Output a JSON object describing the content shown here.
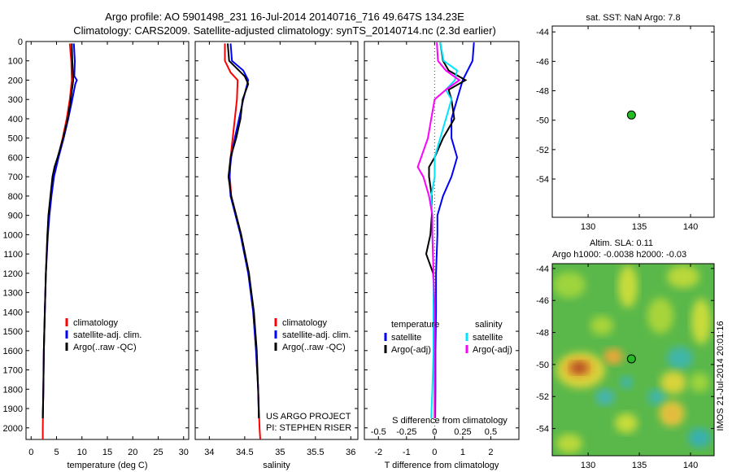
{
  "header": {
    "title_line1": "Argo profile: AO 5901498_231 16-Jul-2014 20140716_716 49.647S 134.23E",
    "title_line2": "Climatology: CARS2009. Satellite-adjusted climatology: synTS_20140714.nc (2.3d earlier)"
  },
  "colors": {
    "climatology": "#ff0000",
    "satellite": "#0000ff",
    "argo": "#000000",
    "sal_satellite": "#00e5ff",
    "sal_argo": "#ff00ff",
    "marker_fill": "#22bb22"
  },
  "chart_data": [
    {
      "id": "temperature",
      "type": "line",
      "xlabel": "temperature (deg C)",
      "xlim": [
        -1,
        31
      ],
      "xticks": [
        0,
        5,
        10,
        15,
        20,
        25,
        30
      ],
      "xtick_labels": [
        "0",
        "5",
        "10",
        "15",
        "20",
        "25",
        "30"
      ],
      "ylim": [
        2060,
        0
      ],
      "yticks": [
        0,
        100,
        200,
        300,
        400,
        500,
        600,
        700,
        800,
        900,
        1000,
        1100,
        1200,
        1300,
        1400,
        1500,
        1600,
        1700,
        1800,
        1900,
        2000
      ],
      "legend": [
        "climatology",
        "satellite-adj. clim.",
        "Argo(..raw -QC)"
      ],
      "series": [
        {
          "name": "climatology",
          "color": "#ff0000",
          "depth": [
            10,
            100,
            200,
            300,
            400,
            500,
            600,
            700,
            800,
            900,
            1000,
            1200,
            1400,
            1600,
            1800,
            2000,
            2060
          ],
          "values": [
            7.6,
            7.9,
            8.0,
            7.6,
            7.0,
            6.2,
            5.3,
            4.4,
            3.9,
            3.5,
            3.2,
            2.9,
            2.7,
            2.5,
            2.4,
            2.3,
            2.3
          ]
        },
        {
          "name": "satellite-adj. clim.",
          "color": "#0000ff",
          "depth": [
            10,
            100,
            180,
            200,
            220,
            300,
            400,
            500,
            600,
            700,
            800,
            900,
            1000,
            1200,
            1400,
            1600,
            1800,
            1950
          ],
          "values": [
            8.4,
            8.6,
            8.5,
            9.0,
            8.7,
            8.1,
            7.3,
            6.4,
            5.4,
            4.5,
            4.0,
            3.6,
            3.3,
            2.9,
            2.7,
            2.5,
            2.4,
            2.3
          ]
        },
        {
          "name": "Argo(..raw -QC)",
          "color": "#000000",
          "depth": [
            10,
            100,
            200,
            300,
            400,
            500,
            600,
            650,
            700,
            800,
            900,
            1000,
            1200,
            1400,
            1600,
            1800,
            1950
          ],
          "values": [
            8.0,
            8.1,
            8.3,
            7.8,
            7.2,
            6.3,
            5.2,
            4.6,
            4.2,
            3.8,
            3.4,
            3.2,
            2.9,
            2.7,
            2.5,
            2.4,
            2.3
          ]
        }
      ]
    },
    {
      "id": "salinity",
      "type": "line",
      "xlabel": "salinity",
      "xlim": [
        33.8,
        36.1
      ],
      "xticks": [
        34,
        34.5,
        35,
        35.5,
        36
      ],
      "xtick_labels": [
        "34",
        "34.5",
        "35",
        "35.5",
        "36"
      ],
      "ylim": [
        2060,
        0
      ],
      "legend": [
        "climatology",
        "satellite-adj. clim.",
        "Argo(..raw -QC)"
      ],
      "annotation": [
        "US ARGO PROJECT",
        "PI: STEPHEN RISER"
      ],
      "series": [
        {
          "name": "climatology",
          "color": "#ff0000",
          "depth": [
            10,
            100,
            160,
            200,
            300,
            400,
            500,
            600,
            700,
            800,
            900,
            1000,
            1200,
            1400,
            1600,
            1800,
            2000,
            2060
          ],
          "values": [
            34.22,
            34.22,
            34.3,
            34.4,
            34.39,
            34.36,
            34.33,
            34.3,
            34.29,
            34.31,
            34.38,
            34.45,
            34.56,
            34.62,
            34.66,
            34.69,
            34.71,
            34.72
          ]
        },
        {
          "name": "satellite-adj. clim.",
          "color": "#0000ff",
          "depth": [
            10,
            100,
            150,
            200,
            300,
            400,
            500,
            600,
            700,
            800,
            900,
            1000,
            1200,
            1400,
            1600,
            1800,
            1950
          ],
          "values": [
            34.3,
            34.32,
            34.48,
            34.55,
            34.48,
            34.42,
            34.36,
            34.31,
            34.28,
            34.3,
            34.37,
            34.44,
            34.55,
            34.62,
            34.66,
            34.69,
            34.7
          ]
        },
        {
          "name": "Argo(..raw -QC)",
          "color": "#000000",
          "depth": [
            10,
            100,
            180,
            220,
            300,
            400,
            500,
            600,
            700,
            800,
            900,
            1000,
            1200,
            1400,
            1600,
            1800,
            1950
          ],
          "values": [
            34.26,
            34.28,
            34.5,
            34.55,
            34.47,
            34.44,
            34.38,
            34.3,
            34.27,
            34.31,
            34.38,
            34.45,
            34.56,
            34.63,
            34.67,
            34.69,
            34.7
          ]
        }
      ]
    },
    {
      "id": "difference",
      "type": "line",
      "xlabel": "T difference from climatology",
      "xlabel2": "S difference from climatology",
      "xlim": [
        -2.5,
        3
      ],
      "xticks": [
        -2,
        -1,
        0,
        1,
        2
      ],
      "xtick_labels": [
        "-2",
        "-1",
        "0",
        "1",
        "2"
      ],
      "x2ticks": [
        -0.5,
        -0.25,
        0,
        0.25,
        0.5
      ],
      "x2tick_labels": [
        "-0.5",
        "-0.25",
        "0",
        "0.25",
        "0.5"
      ],
      "ylim": [
        2060,
        0
      ],
      "legend_temperature": [
        "temperature",
        "satellite",
        "Argo(-adj)"
      ],
      "legend_salinity": [
        "salinity",
        "satellite",
        "Argo(-adj)"
      ],
      "series": [
        {
          "name": "satellite",
          "color": "#0000ff",
          "depth": [
            5,
            100,
            200,
            300,
            400,
            500,
            600,
            700,
            800,
            900,
            1000,
            1200,
            1400,
            1600,
            1800,
            1950
          ],
          "values": [
            1.4,
            1.35,
            1.0,
            0.8,
            0.6,
            0.6,
            0.8,
            0.6,
            0.3,
            0.1,
            0.1,
            0.05,
            0.05,
            0.03,
            0.03,
            0.02
          ]
        },
        {
          "name": "Argo(-adj)",
          "color": "#000000",
          "depth": [
            5,
            100,
            150,
            200,
            250,
            300,
            400,
            500,
            600,
            650,
            700,
            800,
            900,
            1000,
            1100,
            1200,
            1400,
            1600,
            1800,
            1950
          ],
          "values": [
            0.2,
            0.3,
            0.5,
            1.1,
            0.5,
            0.6,
            0.7,
            0.3,
            0.0,
            -0.2,
            -0.2,
            -0.1,
            -0.1,
            -0.15,
            -0.3,
            -0.05,
            0.0,
            0.0,
            0.0,
            0.0
          ]
        },
        {
          "name": "satellite (S)",
          "color": "#00e5ff",
          "depth": [
            5,
            100,
            150,
            200,
            250,
            300,
            400,
            500,
            600,
            700,
            800,
            900,
            1000,
            1200,
            1400,
            1600,
            1800,
            1950
          ],
          "values": [
            0.05,
            0.08,
            0.2,
            0.18,
            0.1,
            0.15,
            0.1,
            0.05,
            0.0,
            0.0,
            -0.03,
            -0.02,
            -0.02,
            -0.01,
            -0.01,
            -0.01,
            -0.02,
            -0.03
          ]
        },
        {
          "name": "Argo(-adj) (S)",
          "color": "#ff00ff",
          "depth": [
            5,
            100,
            150,
            200,
            250,
            300,
            400,
            500,
            600,
            650,
            700,
            800,
            900,
            1000,
            1200,
            1400,
            1600,
            1800,
            1950
          ],
          "values": [
            0.02,
            0.03,
            0.1,
            0.22,
            0.1,
            0.0,
            -0.03,
            -0.06,
            -0.12,
            -0.15,
            -0.1,
            -0.05,
            -0.02,
            -0.02,
            -0.01,
            0.0,
            0.0,
            0.0,
            0.0
          ]
        }
      ]
    },
    {
      "id": "sst_map",
      "type": "scatter",
      "title": "sat. SST: NaN Argo: 7.8",
      "xlim": [
        126.5,
        142.3
      ],
      "ylim": [
        -56.6,
        -43.6
      ],
      "xticks": [
        130,
        135,
        140
      ],
      "xtick_labels": [
        "130",
        "135",
        "140"
      ],
      "yticks": [
        -44,
        -46,
        -48,
        -50,
        -52,
        -54
      ],
      "ytick_labels": [
        "-44",
        "-46",
        "-48",
        "-50",
        "-52",
        "-54"
      ],
      "points": [
        {
          "x": 134.23,
          "y": -49.647
        }
      ]
    },
    {
      "id": "sla_map",
      "type": "heatmap",
      "title_line1": "Altim. SLA: 0.11",
      "title_line2": "Argo h1000: -0.0038 h2000: -0.03",
      "xlim": [
        126.5,
        142.3
      ],
      "ylim": [
        -55.7,
        -43.7
      ],
      "xticks": [
        130,
        135,
        140
      ],
      "xtick_labels": [
        "130",
        "135",
        "140"
      ],
      "yticks": [
        -44,
        -46,
        -48,
        -50,
        -52,
        -54
      ],
      "ytick_labels": [
        "-44",
        "-46",
        "-48",
        "-50",
        "-52",
        "-54"
      ],
      "points": [
        {
          "x": 134.23,
          "y": -49.647
        }
      ],
      "stamp": "IMOS 21-Jul-2014 20:01:16"
    }
  ]
}
